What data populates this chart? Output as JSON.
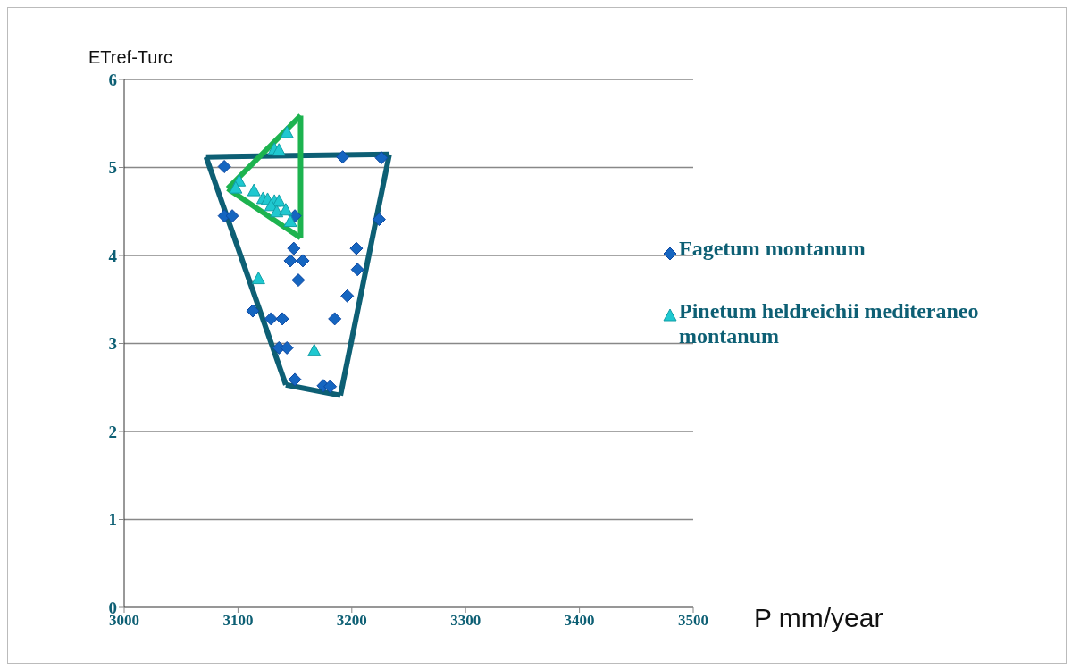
{
  "chart_data": {
    "type": "scatter",
    "xlabel": "P mm/year",
    "ylabel": "ETref-Turc",
    "xlim": [
      3000,
      3500
    ],
    "xticks": [
      3000,
      3100,
      3200,
      3300,
      3400,
      3500
    ],
    "ylim": [
      0,
      6
    ],
    "yticks": [
      0,
      1,
      2,
      3,
      4,
      5,
      6
    ],
    "grid": "y",
    "legend": "right",
    "series": [
      {
        "name": "Fagetum montanum",
        "color": "#1565c0",
        "marker": "diamond",
        "x": [
          3088,
          3192,
          3226,
          3088,
          3095,
          3224,
          3150,
          3149,
          3146,
          3157,
          3153,
          3204,
          3205,
          3196,
          3185,
          3113,
          3129,
          3139,
          3136,
          3143,
          3150,
          3175,
          3181
        ],
        "values": [
          5.01,
          5.12,
          5.11,
          4.45,
          4.45,
          4.41,
          4.45,
          4.08,
          3.94,
          3.94,
          3.72,
          4.08,
          3.84,
          3.54,
          3.28,
          3.37,
          3.28,
          3.28,
          2.95,
          2.95,
          2.59,
          2.52,
          2.51
        ]
      },
      {
        "name": "Pinetum heldreichii mediteraneo montanum",
        "color": "#1fc8d0",
        "marker": "triangle",
        "x": [
          3118,
          3167,
          3143,
          3132,
          3136,
          3101,
          3098,
          3114,
          3122,
          3126,
          3132,
          3136,
          3129,
          3134,
          3142,
          3146
        ],
        "values": [
          3.73,
          2.91,
          5.39,
          5.2,
          5.19,
          4.84,
          4.76,
          4.73,
          4.64,
          4.63,
          4.61,
          4.61,
          4.56,
          4.49,
          4.51,
          4.38
        ]
      },
      {
        "type": "line",
        "color": "#0d5f74",
        "marker": "none",
        "x": [
          3072,
          3233
        ],
        "values": [
          5.12,
          5.15
        ]
      },
      {
        "type": "line",
        "color": "#0d5f74",
        "marker": "none",
        "x": [
          3190,
          3233
        ],
        "values": [
          2.41,
          5.15
        ]
      },
      {
        "type": "line",
        "color": "#0d5f74",
        "marker": "none",
        "x": [
          3142,
          3190
        ],
        "values": [
          2.53,
          2.41
        ]
      },
      {
        "type": "line",
        "color": "#0d5f74",
        "marker": "none",
        "x": [
          3072,
          3142
        ],
        "values": [
          5.12,
          2.53
        ]
      },
      {
        "type": "line",
        "color": "#1db34f",
        "marker": "none",
        "x": [
          3155,
          3155
        ],
        "values": [
          4.2,
          5.59
        ]
      },
      {
        "type": "line",
        "color": "#1db34f",
        "marker": "none",
        "x": [
          3091,
          3155
        ],
        "values": [
          4.76,
          4.2
        ]
      },
      {
        "type": "line",
        "color": "#1db34f",
        "marker": "none",
        "x": [
          3091,
          3155
        ],
        "values": [
          4.76,
          5.59
        ]
      }
    ]
  }
}
